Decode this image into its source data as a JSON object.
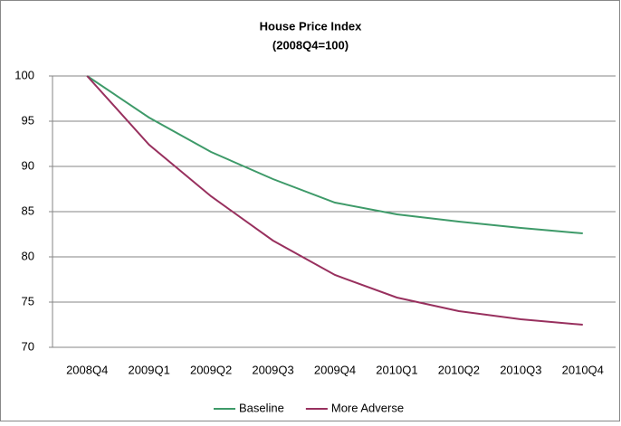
{
  "chart_data": {
    "type": "line",
    "title": "House Price Index",
    "subtitle": "(2008Q4=100)",
    "categories": [
      "2008Q4",
      "2009Q1",
      "2009Q2",
      "2009Q3",
      "2009Q4",
      "2010Q1",
      "2010Q2",
      "2010Q3",
      "2010Q4"
    ],
    "series": [
      {
        "name": "Baseline",
        "color": "#3e9a69",
        "values": [
          100,
          95.4,
          91.6,
          88.6,
          86.0,
          84.7,
          83.9,
          83.2,
          82.6
        ]
      },
      {
        "name": "More Adverse",
        "color": "#98305e",
        "values": [
          100,
          92.4,
          86.7,
          81.8,
          78.0,
          75.5,
          74.0,
          73.1,
          72.5
        ]
      }
    ],
    "ylim": [
      70,
      100
    ],
    "yticks": [
      70,
      75,
      80,
      85,
      90,
      95,
      100
    ],
    "grid": true,
    "legend": "bottom"
  }
}
